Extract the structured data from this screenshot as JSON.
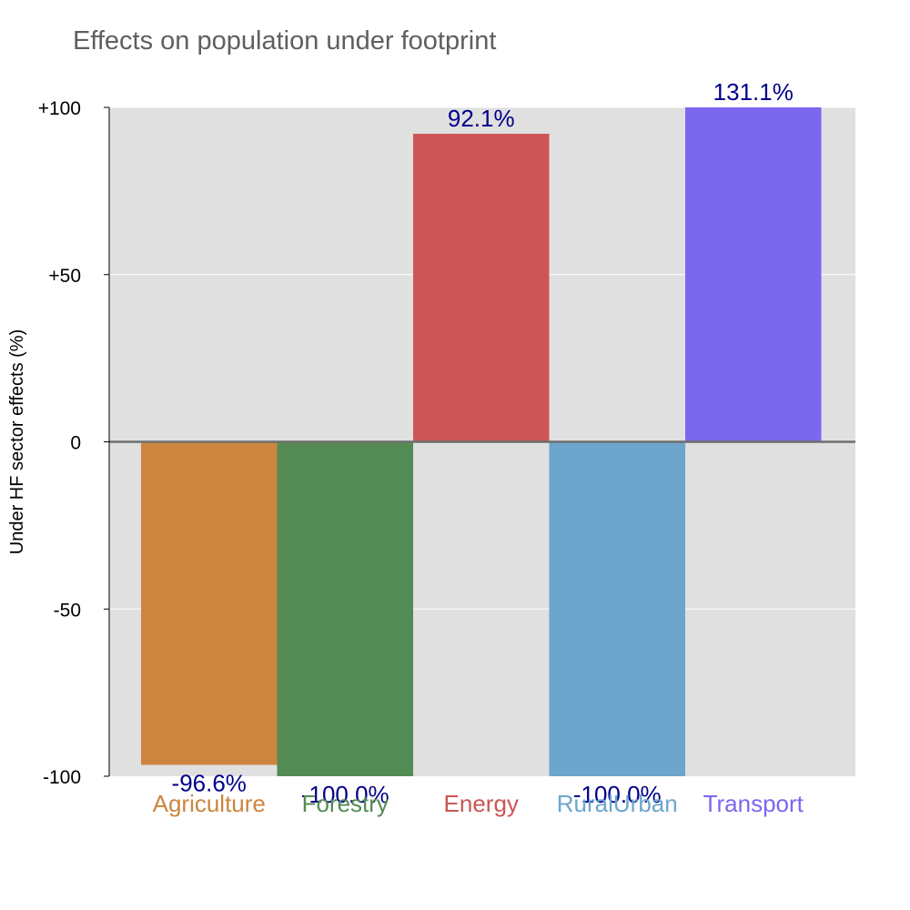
{
  "chart_data": {
    "type": "bar",
    "title": "Effects on population under footprint",
    "ylabel": "Under HF sector effects (%)",
    "xlabel": "",
    "ylim": [
      -100,
      100
    ],
    "yticks": [
      100,
      50,
      0,
      -50,
      -100
    ],
    "ytick_labels": [
      "+100",
      "+50",
      "0",
      "-50",
      "-100"
    ],
    "categories": [
      "Agriculture",
      "Forestry",
      "Energy",
      "RuralUrban",
      "Transport"
    ],
    "values": [
      -96.6,
      -100.0,
      92.1,
      -100.0,
      131.1
    ],
    "data_labels": [
      "-96.6%",
      "-100.0%",
      "92.1%",
      "-100.0%",
      "131.1%"
    ],
    "colors": [
      "#cd853f",
      "#548b54",
      "#cd5555",
      "#6ca6cd",
      "#7b68ee"
    ],
    "label_color": "#00008b",
    "background_color": "#e0e0e0",
    "grid": true,
    "legend": "none"
  }
}
